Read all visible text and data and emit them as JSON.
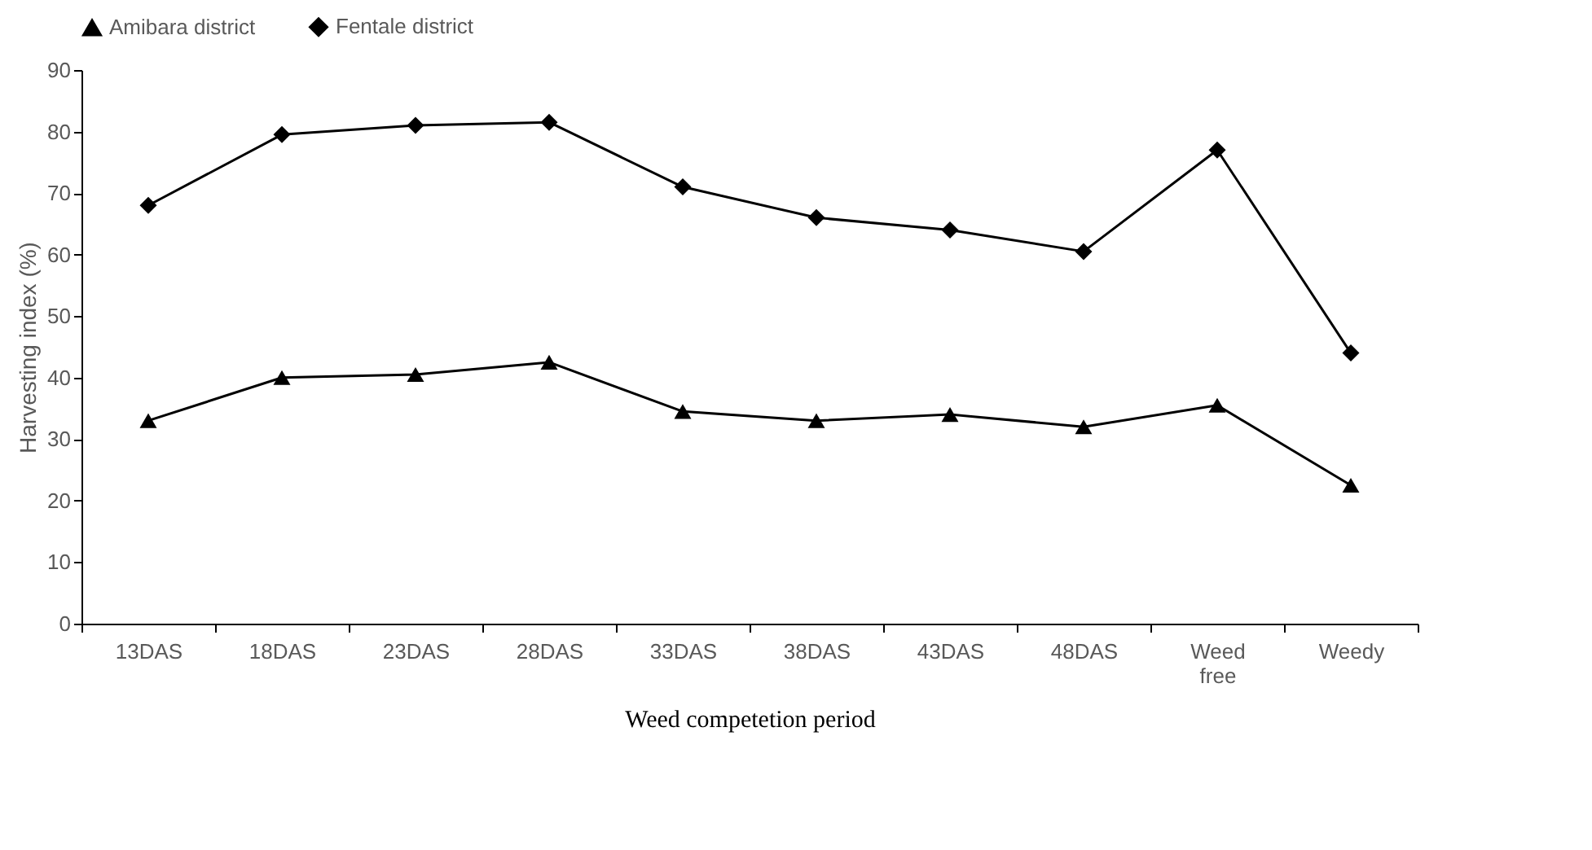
{
  "chart_data": {
    "type": "line",
    "xlabel": "Weed competetion period",
    "ylabel": "Harvesting index (%)",
    "categories": [
      "13DAS",
      "18DAS",
      "23DAS",
      "28DAS",
      "33DAS",
      "38DAS",
      "43DAS",
      "48DAS",
      "Weed free",
      "Weedy"
    ],
    "ylim": [
      0,
      90
    ],
    "yticks": [
      0,
      10,
      20,
      30,
      40,
      50,
      60,
      70,
      80,
      90
    ],
    "legend": "top",
    "grid": false,
    "series": [
      {
        "name": "Amibara district",
        "color": "#000000",
        "marker": "triangle",
        "values": [
          33,
          40,
          40.5,
          42.5,
          34.5,
          33,
          34,
          32,
          35.5,
          22.5
        ]
      },
      {
        "name": "Fentale district",
        "color": "#000000",
        "marker": "diamond",
        "values": [
          68,
          79.5,
          81,
          81.5,
          71,
          66,
          64,
          60.5,
          77,
          44
        ]
      }
    ]
  }
}
